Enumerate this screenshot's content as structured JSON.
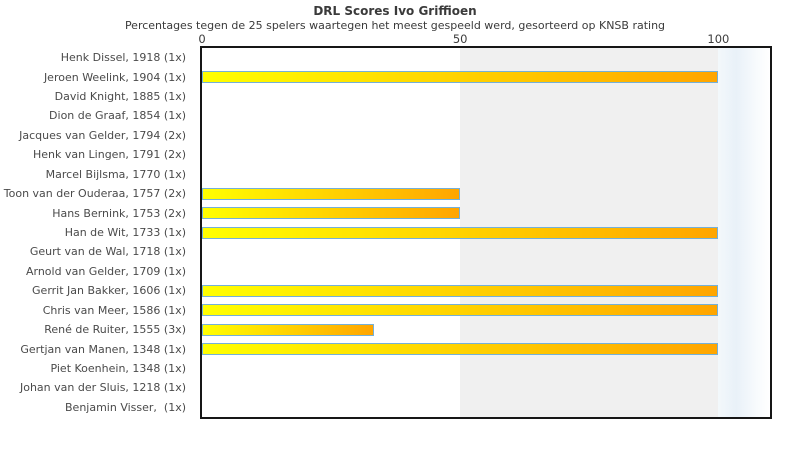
{
  "chart_data": {
    "type": "bar",
    "orientation": "horizontal",
    "title": "DRL Scores Ivo Griffioen",
    "subtitle": "Percentages tegen de 25 spelers waartegen het meest gespeeld werd, gesorteerd op KNSB rating",
    "categories": [
      "Henk Dissel, 1918 (1x)",
      "Jeroen Weelink, 1904 (1x)",
      "David Knight, 1885 (1x)",
      "Dion de Graaf, 1854 (1x)",
      "Jacques van Gelder, 1794 (2x)",
      "Henk van Lingen, 1791 (2x)",
      "Marcel Bijlsma, 1770 (1x)",
      "Toon van der Ouderaa, 1757 (2x)",
      "Hans Bernink, 1753 (2x)",
      "Han de Wit, 1733 (1x)",
      "Geurt van de Wal, 1718 (1x)",
      "Arnold van Gelder, 1709 (1x)",
      "Gerrit Jan Bakker, 1606 (1x)",
      "Chris van Meer, 1586 (1x)",
      "René de Ruiter, 1555 (3x)",
      "Gertjan van Manen, 1348 (1x)",
      "Piet Koenhein, 1348 (1x)",
      "Johan van der Sluis, 1218 (1x)",
      "Benjamin Visser,  (1x)"
    ],
    "values": [
      0,
      100,
      0,
      0,
      0,
      0,
      0,
      50,
      50,
      100,
      0,
      0,
      100,
      100,
      33.3,
      100,
      0,
      0,
      0
    ],
    "x_ticks": [
      0,
      50,
      100
    ],
    "xlim": [
      0,
      110
    ],
    "xlabel": "",
    "ylabel": "",
    "grid": "off",
    "legend": "none",
    "shaded_band": {
      "from": 50,
      "to": 100,
      "color": "#f0f0f0"
    },
    "bar_style": {
      "fill_start": "#ffff00",
      "fill_end": "#ffa500",
      "border": "#74b0d8"
    }
  }
}
